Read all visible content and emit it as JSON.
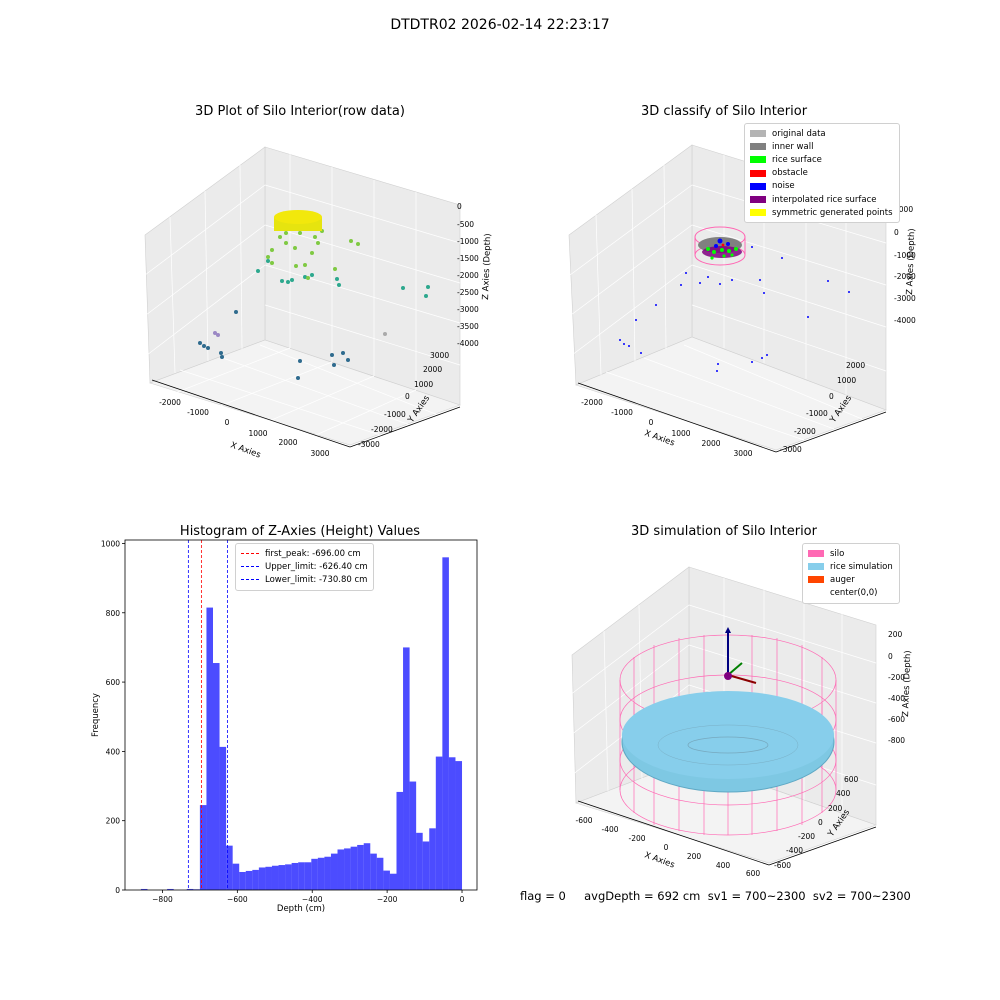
{
  "suptitle": "DTDTR02 2026-02-14 22:23:17",
  "plot1": {
    "title": "3D Plot of Silo Interior(row data)",
    "xlabel": "X Axies",
    "ylabel": "Y Axies",
    "zlabel": "Z Axies (Depth)",
    "xticks": [
      "-2000",
      "-1000",
      "0",
      "1000",
      "2000",
      "3000"
    ],
    "yticks": [
      "-3000",
      "-2000",
      "-1000",
      "0",
      "1000",
      "2000",
      "3000"
    ],
    "zticks": [
      "0",
      "-500",
      "-1000",
      "-1500",
      "-2000",
      "-2500",
      "-3000",
      "-3500",
      "-4000"
    ]
  },
  "plot2": {
    "title": "3D classify of Silo Interior",
    "xlabel": "X Axies",
    "ylabel": "Y Axies",
    "zlabel": "Z Axies (Depth)",
    "xticks": [
      "-2000",
      "-1000",
      "0",
      "1000",
      "2000",
      "3000"
    ],
    "yticks": [
      "-3000",
      "-2000",
      "-1000",
      "0",
      "1000",
      "2000"
    ],
    "zticks": [
      "1000",
      "0",
      "-1000",
      "-2000",
      "-3000",
      "-4000"
    ],
    "legend": [
      {
        "label": "original data",
        "color": "#b4b4b4"
      },
      {
        "label": "inner wall",
        "color": "#808080"
      },
      {
        "label": "rice surface",
        "color": "#00ff00"
      },
      {
        "label": "obstacle",
        "color": "#ff0000"
      },
      {
        "label": "noise",
        "color": "#0000ff"
      },
      {
        "label": "interpolated rice surface",
        "color": "#800080"
      },
      {
        "label": "symmetric generated points",
        "color": "#ffff00"
      }
    ]
  },
  "histogram": {
    "title": "Histogram of Z-Axies (Height) Values",
    "xlabel": "Depth (cm)",
    "ylabel": "Frequency",
    "legend": [
      {
        "label": "first_peak: -696.00 cm",
        "color": "#ff0000"
      },
      {
        "label": "Upper_limit: -626.40 cm",
        "color": "#0000ff"
      },
      {
        "label": "Lower_limit: -730.80 cm",
        "color": "#0000ff"
      }
    ]
  },
  "chart_data": [
    {
      "type": "histogram",
      "title": "Histogram of Z-Axies (Height) Values",
      "xlabel": "Depth (cm)",
      "ylabel": "Frequency",
      "xlim": [
        -900,
        40
      ],
      "ylim": [
        0,
        1010
      ],
      "xticks": [
        -800,
        -600,
        -400,
        -200,
        0
      ],
      "yticks": [
        0,
        200,
        400,
        600,
        800,
        1000
      ],
      "bin_width": 17.5,
      "bin_start": -875,
      "bar_color": "#0000ff",
      "counts": [
        0,
        3,
        0,
        0,
        0,
        3,
        0,
        0,
        3,
        2,
        245,
        815,
        655,
        413,
        128,
        76,
        52,
        55,
        58,
        65,
        67,
        70,
        72,
        74,
        78,
        80,
        80,
        90,
        93,
        96,
        105,
        117,
        120,
        125,
        130,
        135,
        105,
        93,
        56,
        47,
        283,
        700,
        313,
        165,
        140,
        178,
        385,
        960,
        383,
        372
      ],
      "vlines": [
        {
          "name": "first_peak",
          "x": -696.0,
          "color": "#ff0000"
        },
        {
          "name": "Upper_limit",
          "x": -626.4,
          "color": "#0000ff"
        },
        {
          "name": "Lower_limit",
          "x": -730.8,
          "color": "#0000ff"
        }
      ]
    },
    {
      "type": "scatter3d",
      "title": "3D Plot of Silo Interior(row data)",
      "xlim": [
        -2500,
        3500
      ],
      "ylim": [
        -3500,
        3500
      ],
      "zlim": [
        -4000,
        0
      ]
    },
    {
      "type": "scatter3d",
      "title": "3D classify of Silo Interior",
      "xlim": [
        -2500,
        3500
      ],
      "ylim": [
        -3500,
        2500
      ],
      "zlim": [
        -4500,
        1000
      ]
    },
    {
      "type": "surface3d",
      "title": "3D simulation of Silo Interior",
      "xlim": [
        -700,
        700
      ],
      "ylim": [
        -700,
        700
      ],
      "zlim": [
        -1000,
        300
      ]
    }
  ],
  "plot4": {
    "title": "3D simulation of Silo Interior",
    "xlabel": "X Axies",
    "ylabel": "Y Axies",
    "zlabel": "Z Axies (Depth)",
    "xticks": [
      "-600",
      "-400",
      "-200",
      "0",
      "200",
      "400",
      "600"
    ],
    "yticks": [
      "-600",
      "-400",
      "-200",
      "0",
      "200",
      "400",
      "600"
    ],
    "zticks": [
      "200",
      "0",
      "-200",
      "-400",
      "-600",
      "-800"
    ],
    "legend": [
      {
        "label": "silo",
        "color": "#ff69b4"
      },
      {
        "label": "rice simulation",
        "color": "#87ceeb"
      },
      {
        "label": "auger",
        "color": "#ff4500"
      },
      {
        "label": "center(0,0)",
        "color": "#ffffff"
      }
    ]
  },
  "footer": {
    "text": "flag = 0     avgDepth = 692 cm  sv1 = 700~2300  sv2 = 700~2300"
  }
}
